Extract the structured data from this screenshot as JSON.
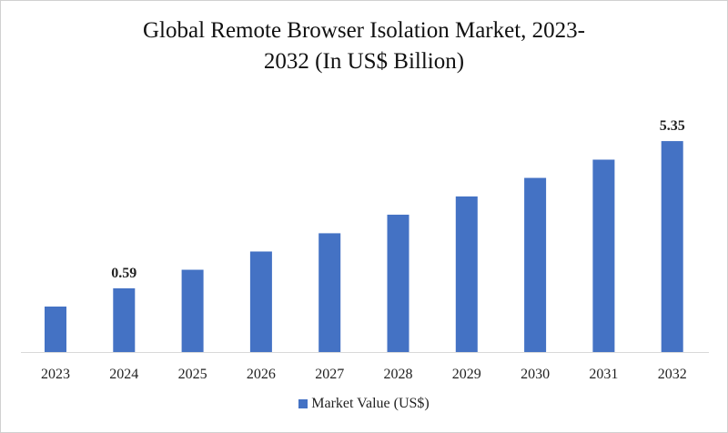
{
  "chart_data": {
    "type": "bar",
    "title": "Global Remote Browser Isolation Market, 2023-2032 (In US$ Billion)",
    "title_lines": [
      "Global Remote Browser Isolation Market, 2023-",
      "2032 (In US$ Billion)"
    ],
    "categories": [
      "2023",
      "2024",
      "2025",
      "2026",
      "2027",
      "2028",
      "2029",
      "2030",
      "2031",
      "2032"
    ],
    "series": [
      {
        "name": "Market Value (US$)",
        "values": [
          0.0,
          0.59,
          1.19,
          1.78,
          2.37,
          2.97,
          3.56,
          4.16,
          4.75,
          5.35
        ],
        "color": "#4472C4"
      }
    ],
    "data_labels": {
      "2024": "0.59",
      "2032": "5.35"
    },
    "xlabel": "",
    "ylabel": "",
    "grid": false,
    "legend_position": "bottom"
  }
}
